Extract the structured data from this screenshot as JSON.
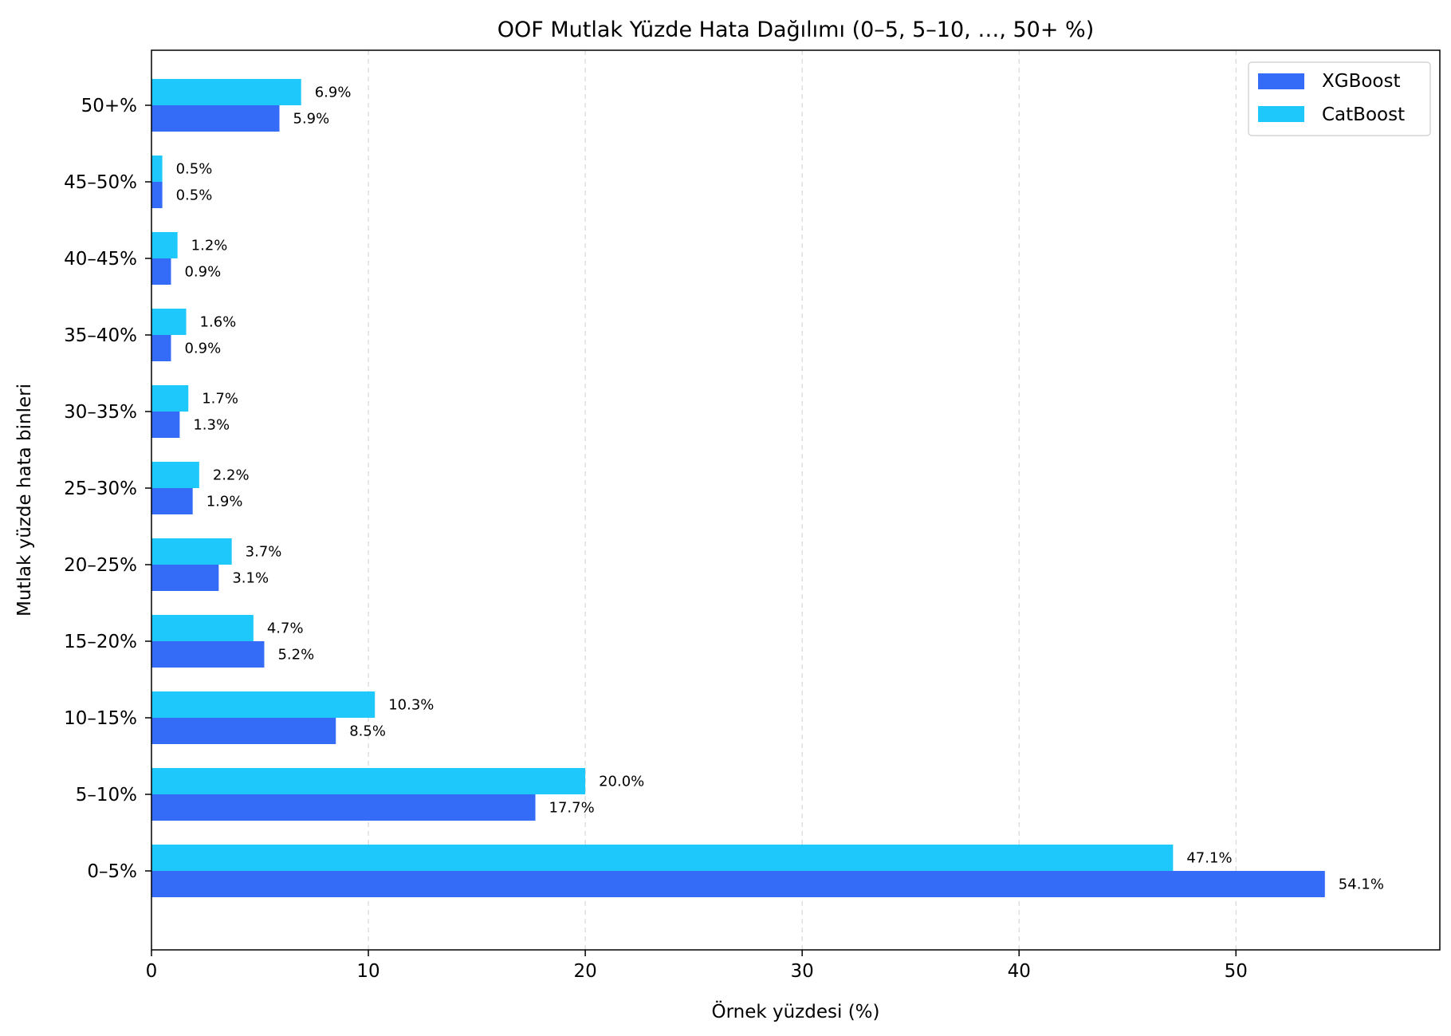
{
  "chart_data": {
    "type": "bar",
    "orientation": "horizontal",
    "title": "OOF Mutlak Yüzde Hata Dağılımı (0–5, 5–10, …, 50+ %)",
    "xlabel": "Örnek yüzdesi (%)",
    "ylabel": "Mutlak yüzde hata binleri",
    "categories": [
      "0–5%",
      "5–10%",
      "10–15%",
      "15–20%",
      "20–25%",
      "25–30%",
      "30–35%",
      "35–40%",
      "40–45%",
      "45–50%",
      "50+%"
    ],
    "xlim": [
      0,
      59.4
    ],
    "xticks": [
      0,
      10,
      20,
      30,
      40,
      50
    ],
    "grid": "x-dashed",
    "legend_position": "top-right",
    "series": [
      {
        "name": "XGBoost",
        "color": "#346cf8",
        "values": [
          54.1,
          17.7,
          8.5,
          5.2,
          3.1,
          1.9,
          1.3,
          0.9,
          0.9,
          0.5,
          5.9
        ],
        "labels": [
          "54.1%",
          "17.7%",
          "8.5%",
          "5.2%",
          "3.1%",
          "1.9%",
          "1.3%",
          "0.9%",
          "0.9%",
          "0.5%",
          "5.9%"
        ]
      },
      {
        "name": "CatBoost",
        "color": "#1ec8fa",
        "values": [
          47.1,
          20.0,
          10.3,
          4.7,
          3.7,
          2.2,
          1.7,
          1.6,
          1.2,
          0.5,
          6.9
        ],
        "labels": [
          "47.1%",
          "20.0%",
          "10.3%",
          "4.7%",
          "3.7%",
          "2.2%",
          "1.7%",
          "1.6%",
          "1.2%",
          "0.5%",
          "6.9%"
        ]
      }
    ]
  }
}
